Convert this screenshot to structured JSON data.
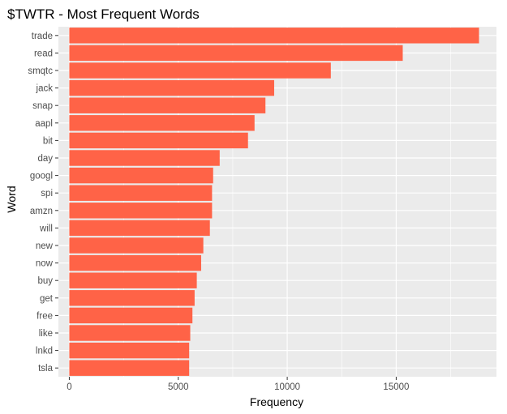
{
  "chart_data": {
    "type": "bar",
    "orientation": "horizontal",
    "title": "$TWTR - Most Frequent Words",
    "xlabel": "Frequency",
    "ylabel": "Word",
    "xlim": [
      -500,
      19600
    ],
    "xticks": [
      0,
      5000,
      10000,
      15000
    ],
    "grid": true,
    "bar_color": "#ff6347",
    "panel_color": "#ebebeb",
    "categories": [
      "trade",
      "read",
      "smqtc",
      "jack",
      "snap",
      "aapl",
      "bit",
      "day",
      "googl",
      "spi",
      "amzn",
      "will",
      "new",
      "now",
      "buy",
      "get",
      "free",
      "like",
      "lnkd",
      "tsla"
    ],
    "values": [
      18800,
      15300,
      12000,
      9400,
      9000,
      8500,
      8200,
      6900,
      6600,
      6550,
      6550,
      6450,
      6150,
      6050,
      5850,
      5750,
      5650,
      5550,
      5500,
      5500
    ]
  }
}
